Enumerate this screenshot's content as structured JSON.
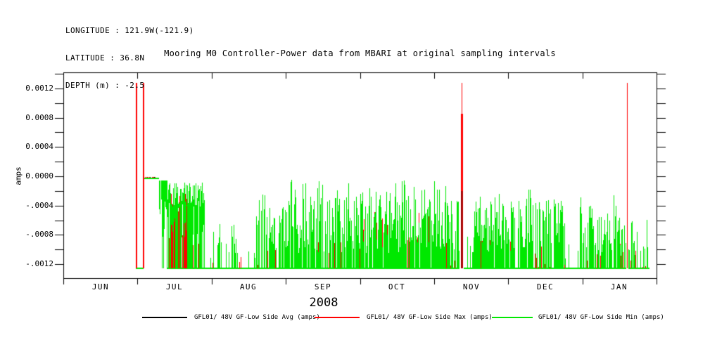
{
  "header": {
    "longitude": "LONGITUDE : 121.9W(-121.9)",
    "latitude": "LATITUDE : 36.8N",
    "depth": "DEPTH (m) : -2.5"
  },
  "chart_data": {
    "type": "line",
    "title": "Mooring M0 Controller-Power data from MBARI at original sampling intervals",
    "ylabel": "amps",
    "year_label": "2008",
    "x_tick_labels": [
      "JUN",
      "JUL",
      "AUG",
      "SEP",
      "OCT",
      "NOV",
      "DEC",
      "JAN"
    ],
    "x_axis_months_span": 8,
    "x_axis_start": "JUN 2008",
    "y_tick_labels": [
      "0.0012",
      "0.0008",
      "0.0004",
      "0.0000",
      "-.0004",
      "-.0008",
      "-.0012"
    ],
    "y_tick_values": [
      0.0012,
      0.0008,
      0.0004,
      0.0,
      -0.0004,
      -0.0008,
      -0.0012
    ],
    "y_minor_tick_step": 0.0002,
    "ylim": [
      -0.0014,
      0.0014
    ],
    "grid": false,
    "legend_position": "bottom",
    "series": [
      {
        "name": "GFL01/ 48V GF-Low Side Avg (amps)",
        "color": "#000000"
      },
      {
        "name": "GFL01/ 48V GF-Low Side Max (amps)",
        "color": "#ff0000"
      },
      {
        "name": "GFL01/ 48V GF-Low Side Min (amps)",
        "color": "#00e800"
      }
    ],
    "baseline_value": -0.00125,
    "flat_segments": [
      {
        "m0": 0.979,
        "m1": 1.069,
        "v": -0.00125,
        "dashes": false
      },
      {
        "m0": 1.083,
        "m1": 1.283,
        "v": -2e-05,
        "dashes": true
      }
    ],
    "spikes": [
      {
        "m": 0.977,
        "top": 0.00128,
        "bottom": -0.00125,
        "w": 2
      },
      {
        "m": 1.072,
        "top": 0.00128,
        "bottom": -0.00125,
        "w": 2
      },
      {
        "m": 5.37,
        "top": 0.00128,
        "bottom": -0.00125,
        "w": 1,
        "thick_from": 0.00085,
        "thick_w": 3,
        "black_top": -0.0002
      },
      {
        "m": 7.601,
        "top": 0.00128,
        "bottom": -0.00125,
        "w": 1
      }
    ],
    "noise_segments": [
      {
        "m0": 1.29,
        "m1": 1.395,
        "mode": "hang",
        "topV": -6e-05,
        "bot": [
          -0.00085,
          -0.00025
        ],
        "p": 0.92,
        "redP": 0.12,
        "redTop": [
          -0.0009,
          -0.0005
        ]
      },
      {
        "m0": 1.395,
        "m1": 1.898,
        "mode": "band",
        "band": [
          -0.00042,
          -8e-05
        ],
        "fullP": 0.72,
        "partBot": [
          -0.00085,
          -0.0003
        ],
        "redP": 0.22,
        "redTop": [
          -0.0011,
          -0.0006
        ],
        "redBlocks": [
          [
            1.452,
            1.508
          ],
          [
            1.527,
            1.565
          ],
          [
            1.613,
            1.67
          ]
        ],
        "blockRedTop": [
          -0.0005,
          -0.00022
        ],
        "blockFullP": 0.45
      },
      {
        "m0": 1.898,
        "m1": 2.087,
        "p": 0.17,
        "top": [
          -0.00115,
          -0.0006
        ],
        "redP": 0.05,
        "redTop": [
          -0.00125,
          -0.00105
        ]
      },
      {
        "m0": 2.087,
        "m1": 2.334,
        "p": 0.5,
        "top": [
          -0.0011,
          -0.00058
        ],
        "redP": 0.06,
        "redTop": [
          -0.00125,
          -0.00102
        ]
      },
      {
        "m0": 2.334,
        "m1": 2.6,
        "p": 0.15,
        "top": [
          -0.00118,
          -0.00092
        ],
        "redP": 0.04,
        "redTop": [
          -0.00128,
          -0.0011
        ]
      },
      {
        "m0": 2.6,
        "m1": 3.007,
        "p": 0.65,
        "top": [
          -0.00102,
          -0.0004
        ],
        "tallP": 0.05,
        "tall": [
          -0.00038,
          -0.00018
        ],
        "redP": 0.1,
        "redTop": [
          -0.00125,
          -0.00098
        ]
      },
      {
        "m0": 3.007,
        "m1": 4.004,
        "p": 0.85,
        "top": [
          -0.00105,
          -0.00026
        ],
        "tallP": 0.12,
        "tall": [
          -0.00034,
          -4e-05
        ],
        "redP": 0.22,
        "redTop": [
          -0.00126,
          -0.00082
        ]
      },
      {
        "m0": 4.004,
        "m1": 5.01,
        "p": 0.85,
        "top": [
          -0.00105,
          -0.0003
        ],
        "tallP": 0.13,
        "tall": [
          -0.0003,
          -3e-05
        ],
        "redP": 0.28,
        "redTop": [
          -0.00122,
          -0.0004
        ]
      },
      {
        "m0": 5.01,
        "m1": 5.332,
        "p": 0.8,
        "top": [
          -0.00102,
          -0.0003
        ],
        "tallP": 0.09,
        "tall": [
          -0.00028,
          -8e-05
        ],
        "redP": 0.24,
        "redTop": [
          -0.00124,
          -0.0008
        ]
      },
      {
        "m0": 5.398,
        "m1": 5.52,
        "p": 0.18,
        "top": [
          -0.00112,
          -0.0007
        ],
        "redP": 0.05,
        "redTop": [
          -0.00126,
          -0.0011
        ]
      },
      {
        "m0": 5.52,
        "m1": 6.005,
        "p": 0.8,
        "top": [
          -0.00104,
          -0.00034
        ],
        "tallP": 0.07,
        "tall": [
          -0.0003,
          -0.0001
        ],
        "redP": 0.28,
        "redTop": [
          -0.00126,
          -0.00086
        ]
      },
      {
        "m0": 6.005,
        "m1": 6.755,
        "p": 0.78,
        "top": [
          -0.00104,
          -0.0003
        ],
        "tallP": 0.08,
        "tall": [
          -0.00026,
          -8e-05
        ],
        "redP": 0.26,
        "redTop": [
          -0.00126,
          -0.00088
        ]
      },
      {
        "m0": 6.755,
        "m1": 6.964,
        "p": 0.15,
        "top": [
          -0.00112,
          -0.0008
        ],
        "redP": 0.04,
        "redTop": [
          -0.00128,
          -0.00112
        ]
      },
      {
        "m0": 6.964,
        "m1": 7.58,
        "p": 0.7,
        "top": [
          -0.00104,
          -0.0004
        ],
        "tallP": 0.05,
        "tall": [
          -0.00046,
          -0.0002
        ],
        "redP": 0.24,
        "redTop": [
          -0.00126,
          -0.0009
        ]
      },
      {
        "m0": 7.62,
        "m1": 7.75,
        "p": 0.55,
        "top": [
          -0.00108,
          -0.00058
        ],
        "redP": 0.18,
        "redTop": [
          -0.00126,
          -0.00098
        ]
      },
      {
        "m0": 7.75,
        "m1": 7.855,
        "p": 0.12,
        "top": [
          -0.0011,
          -0.0009
        ],
        "redP": 0.03,
        "redTop": [
          -0.00128,
          -0.00112
        ]
      },
      {
        "m0": 7.855,
        "m1": 7.9,
        "p": 0.55,
        "top": [
          -0.001,
          -0.0005
        ],
        "redP": 0.3,
        "redTop": [
          -0.00122,
          -0.00092
        ]
      }
    ]
  }
}
